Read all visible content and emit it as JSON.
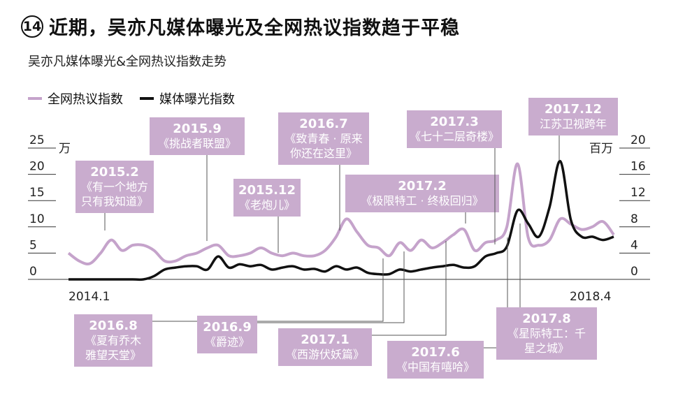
{
  "header": {
    "number": "14",
    "title": "近期，吴亦凡媒体曝光及全网热议指数趋于平稳",
    "subtitle": "吴亦凡媒体曝光&全网热议指数走势"
  },
  "colors": {
    "heat": "#c5a3cb",
    "exposure": "#111111",
    "callout_bg": "#c9acce",
    "leader": "#555555",
    "grid": "#333333"
  },
  "chart_data": {
    "type": "line",
    "x_range": [
      "2014.1",
      "2018.4"
    ],
    "x_start_label": "2014.1",
    "x_end_label": "2018.4",
    "left_axis": {
      "unit": "万",
      "ticks": [
        "0",
        "5",
        "10",
        "15",
        "20",
        "25"
      ],
      "range": [
        0,
        25
      ]
    },
    "right_axis": {
      "unit": "百万",
      "ticks": [
        "0",
        "4",
        "8",
        "12",
        "16",
        "20"
      ],
      "range": [
        0,
        20
      ]
    },
    "legend_position": "top-left",
    "series": [
      {
        "name": "全网热议指数",
        "axis": "left",
        "points": [
          [
            "2014.1",
            5.0
          ],
          [
            "2014.2",
            3.5
          ],
          [
            "2014.3",
            3.0
          ],
          [
            "2014.4",
            5.0
          ],
          [
            "2014.5",
            7.5
          ],
          [
            "2014.6",
            5.5
          ],
          [
            "2014.7",
            6.5
          ],
          [
            "2014.8",
            6.5
          ],
          [
            "2014.9",
            5.5
          ],
          [
            "2014.10",
            3.5
          ],
          [
            "2014.11",
            3.5
          ],
          [
            "2014.12",
            4.5
          ],
          [
            "2015.1",
            5.0
          ],
          [
            "2015.2",
            6.0
          ],
          [
            "2015.3",
            6.5
          ],
          [
            "2015.4",
            4.5
          ],
          [
            "2015.5",
            4.5
          ],
          [
            "2015.6",
            5.0
          ],
          [
            "2015.7",
            6.0
          ],
          [
            "2015.8",
            5.0
          ],
          [
            "2015.9",
            4.5
          ],
          [
            "2015.10",
            5.0
          ],
          [
            "2015.11",
            4.5
          ],
          [
            "2015.12",
            4.5
          ],
          [
            "2016.1",
            5.5
          ],
          [
            "2016.2",
            8.0
          ],
          [
            "2016.3",
            11.5
          ],
          [
            "2016.4",
            9.0
          ],
          [
            "2016.5",
            6.5
          ],
          [
            "2016.6",
            6.0
          ],
          [
            "2016.7",
            4.5
          ],
          [
            "2016.8",
            7.0
          ],
          [
            "2016.9",
            5.5
          ],
          [
            "2016.10",
            7.5
          ],
          [
            "2016.11",
            6.0
          ],
          [
            "2016.12",
            7.0
          ],
          [
            "2017.1",
            8.5
          ],
          [
            "2017.2",
            9.5
          ],
          [
            "2017.3",
            5.5
          ],
          [
            "2017.4",
            7.0
          ],
          [
            "2017.5",
            7.5
          ],
          [
            "2017.6",
            10.0
          ],
          [
            "2017.7",
            22.0
          ],
          [
            "2017.8",
            8.0
          ],
          [
            "2017.9",
            6.5
          ],
          [
            "2017.10",
            7.5
          ],
          [
            "2017.11",
            11.5
          ],
          [
            "2017.12",
            10.5
          ],
          [
            "2018.1",
            9.5
          ],
          [
            "2018.2",
            10.0
          ],
          [
            "2018.3",
            11.0
          ],
          [
            "2018.4",
            8.5
          ]
        ]
      },
      {
        "name": "媒体曝光指数",
        "axis": "right",
        "points": [
          [
            "2014.1",
            0.0
          ],
          [
            "2014.2",
            0.0
          ],
          [
            "2014.3",
            0.0
          ],
          [
            "2014.4",
            0.0
          ],
          [
            "2014.5",
            0.0
          ],
          [
            "2014.6",
            0.0
          ],
          [
            "2014.7",
            0.0
          ],
          [
            "2014.8",
            0.0
          ],
          [
            "2014.9",
            0.5
          ],
          [
            "2014.10",
            1.5
          ],
          [
            "2014.11",
            1.8
          ],
          [
            "2014.12",
            2.0
          ],
          [
            "2015.1",
            2.0
          ],
          [
            "2015.2",
            1.5
          ],
          [
            "2015.3",
            3.5
          ],
          [
            "2015.4",
            1.8
          ],
          [
            "2015.5",
            2.3
          ],
          [
            "2015.6",
            2.0
          ],
          [
            "2015.7",
            2.2
          ],
          [
            "2015.8",
            1.5
          ],
          [
            "2015.9",
            1.8
          ],
          [
            "2015.10",
            2.0
          ],
          [
            "2015.11",
            1.5
          ],
          [
            "2015.12",
            1.6
          ],
          [
            "2016.1",
            1.2
          ],
          [
            "2016.2",
            2.0
          ],
          [
            "2016.3",
            1.5
          ],
          [
            "2016.4",
            1.8
          ],
          [
            "2016.5",
            1.0
          ],
          [
            "2016.6",
            0.8
          ],
          [
            "2016.7",
            0.8
          ],
          [
            "2016.8",
            1.5
          ],
          [
            "2016.9",
            1.2
          ],
          [
            "2016.10",
            1.5
          ],
          [
            "2016.11",
            1.8
          ],
          [
            "2016.12",
            2.0
          ],
          [
            "2017.1",
            2.2
          ],
          [
            "2017.2",
            1.8
          ],
          [
            "2017.3",
            2.0
          ],
          [
            "2017.4",
            3.5
          ],
          [
            "2017.5",
            4.0
          ],
          [
            "2017.6",
            5.0
          ],
          [
            "2017.7",
            10.5
          ],
          [
            "2017.8",
            8.5
          ],
          [
            "2017.9",
            6.5
          ],
          [
            "2017.10",
            11.0
          ],
          [
            "2017.11",
            18.0
          ],
          [
            "2017.12",
            9.0
          ],
          [
            "2018.1",
            6.5
          ],
          [
            "2018.2",
            6.5
          ],
          [
            "2018.3",
            6.0
          ],
          [
            "2018.4",
            6.5
          ]
        ]
      }
    ],
    "annotations": [
      {
        "date": "2015.2",
        "text": "2015.2\n《有一个地方\n只有我知道》",
        "side": "top"
      },
      {
        "date": "2015.9",
        "text": "2015.9\n《挑战者联盟》",
        "side": "top"
      },
      {
        "date": "2015.12",
        "text": "2015.12\n《老炮儿》",
        "side": "top"
      },
      {
        "date": "2016.7",
        "text": "2016.7\n《致青春 · 原来\n你还在这里》",
        "side": "top"
      },
      {
        "date": "2017.2",
        "text": "2017.2\n《极限特工 · 终极回归》",
        "side": "top"
      },
      {
        "date": "2017.3",
        "text": "2017.3\n《七十二层奇楼》",
        "side": "top"
      },
      {
        "date": "2017.12",
        "text": "2017.12\n江苏卫视跨年",
        "side": "top"
      },
      {
        "date": "2016.8",
        "text": "2016.8\n《夏有乔木\n雅望天堂》",
        "side": "bottom"
      },
      {
        "date": "2016.9",
        "text": "2016.9\n《爵迹》",
        "side": "bottom"
      },
      {
        "date": "2017.1",
        "text": "2017.1\n《西游伏妖篇》",
        "side": "bottom"
      },
      {
        "date": "2017.6",
        "text": "2017.6\n《中国有嘻哈》",
        "side": "bottom"
      },
      {
        "date": "2017.8",
        "text": "2017.8\n《星际特工：千\n星之城》",
        "side": "bottom"
      }
    ]
  }
}
